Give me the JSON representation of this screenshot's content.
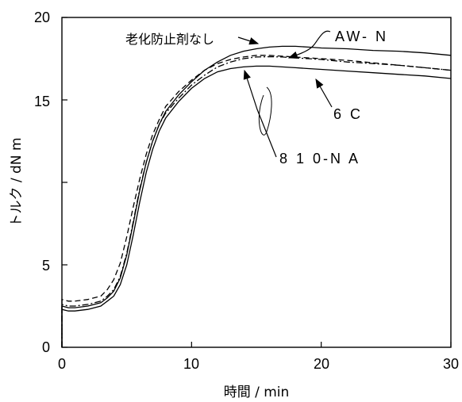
{
  "chart_data": {
    "type": "line",
    "xlabel": "時間 / min",
    "ylabel": "トルク / dN m",
    "xlim": [
      0,
      30
    ],
    "ylim": [
      0,
      20
    ],
    "x_ticks": [
      "0",
      "10",
      "20",
      "30"
    ],
    "y_ticks": [
      "0",
      "5",
      "15",
      "20"
    ],
    "x": [
      0,
      0.5,
      1,
      2,
      3,
      3.5,
      4,
      4.5,
      5,
      5.5,
      6,
      6.5,
      7,
      7.5,
      8,
      9,
      10,
      11,
      12,
      13,
      14,
      15,
      16,
      17,
      18,
      19,
      20,
      22,
      24,
      26,
      28,
      30
    ],
    "series": [
      {
        "name": "老化防止剤なし",
        "style": "solid",
        "values": [
          2.5,
          2.4,
          2.4,
          2.5,
          2.7,
          3.0,
          3.4,
          4.2,
          5.6,
          7.5,
          9.5,
          11.2,
          12.5,
          13.5,
          14.3,
          15.3,
          16.1,
          16.8,
          17.3,
          17.7,
          17.95,
          18.1,
          18.2,
          18.25,
          18.25,
          18.2,
          18.15,
          18.1,
          18.0,
          17.95,
          17.85,
          17.7
        ]
      },
      {
        "name": "AW-N",
        "style": "dash-dot",
        "values": [
          2.6,
          2.5,
          2.5,
          2.6,
          2.8,
          3.1,
          3.5,
          4.3,
          5.7,
          7.6,
          9.6,
          11.2,
          12.5,
          13.5,
          14.2,
          15.1,
          15.9,
          16.5,
          17.0,
          17.3,
          17.5,
          17.6,
          17.62,
          17.6,
          17.55,
          17.5,
          17.45,
          17.3,
          17.2,
          17.1,
          16.95,
          16.8
        ]
      },
      {
        "name": "6C",
        "style": "solid",
        "values": [
          2.3,
          2.2,
          2.2,
          2.3,
          2.5,
          2.8,
          3.1,
          3.8,
          5.0,
          6.8,
          8.8,
          10.6,
          12.0,
          13.1,
          13.9,
          14.9,
          15.7,
          16.3,
          16.7,
          16.9,
          17.0,
          17.05,
          17.05,
          17.0,
          16.95,
          16.9,
          16.85,
          16.75,
          16.65,
          16.55,
          16.45,
          16.3
        ]
      },
      {
        "name": "810-NA",
        "style": "dashed",
        "values": [
          2.9,
          2.8,
          2.8,
          2.9,
          3.1,
          3.5,
          4.1,
          5.1,
          6.7,
          8.5,
          10.2,
          11.7,
          12.9,
          13.8,
          14.6,
          15.5,
          16.2,
          16.8,
          17.2,
          17.45,
          17.6,
          17.7,
          17.7,
          17.65,
          17.6,
          17.55,
          17.5,
          17.4,
          17.25,
          17.1,
          16.95,
          16.8
        ]
      }
    ],
    "annotations": {
      "no_antioxidant": "老化防止剤なし",
      "aw_n": "AW- N",
      "c6": "6 C",
      "na810": "8 1 0-N A"
    }
  }
}
